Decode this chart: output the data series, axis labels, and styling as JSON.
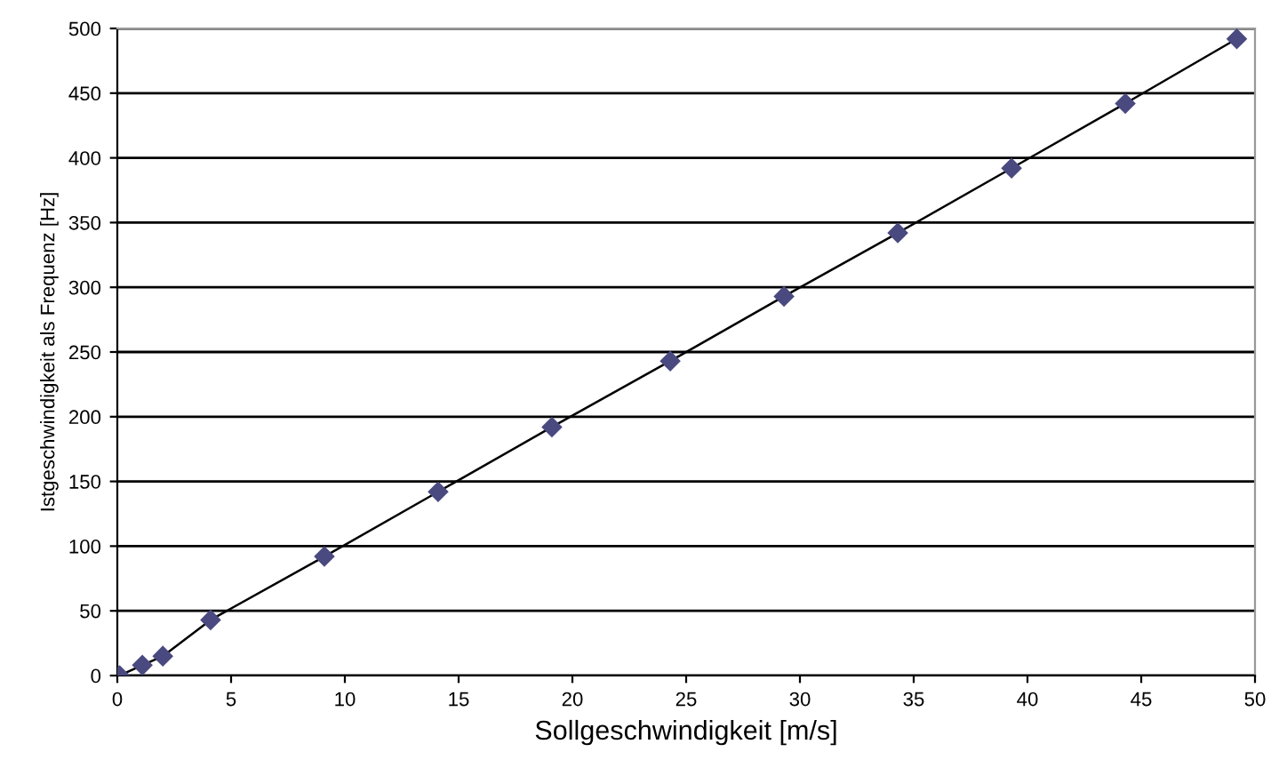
{
  "chart_data": {
    "type": "line",
    "xlabel": "Sollgeschwindigkeit [m/s]",
    "ylabel": "Istgeschwindigkeit als Frequenz [Hz]",
    "series": [
      {
        "color": "#4a4a80",
        "x": [
          0.1,
          1.1,
          2.0,
          4.1,
          9.1,
          14.1,
          19.1,
          24.3,
          29.3,
          34.3,
          39.3,
          44.3,
          49.2
        ],
        "values": [
          0,
          8,
          15,
          43,
          92,
          142,
          192,
          243,
          293,
          342,
          392,
          442,
          492
        ]
      }
    ],
    "xlim": [
      0,
      50
    ],
    "ylim": [
      0,
      500
    ],
    "xticks": [
      0,
      5,
      10,
      15,
      20,
      25,
      30,
      35,
      40,
      45,
      50
    ],
    "yticks": [
      0,
      50,
      100,
      150,
      200,
      250,
      300,
      350,
      400,
      450,
      500
    ],
    "grid": "y",
    "marker": "diamond",
    "line_style": "solid",
    "legend": false
  }
}
